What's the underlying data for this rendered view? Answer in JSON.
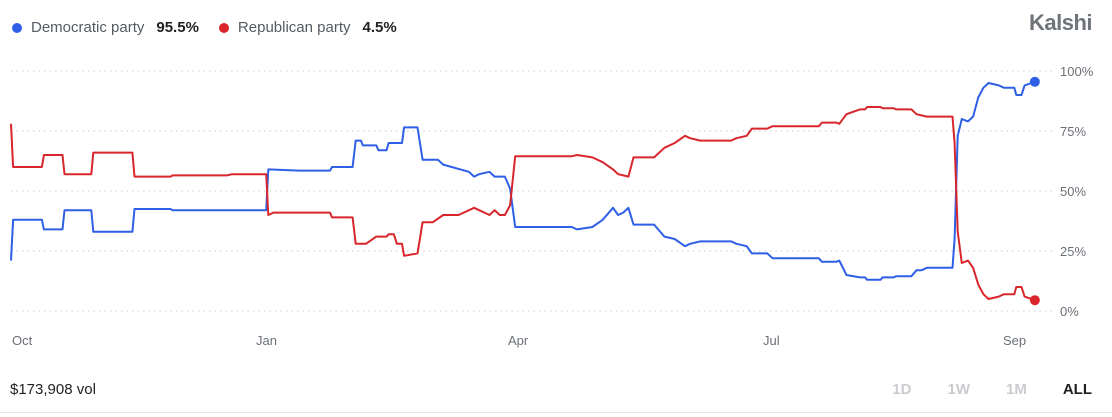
{
  "legend": {
    "dem": {
      "label": "Democratic party",
      "value": "95.5%",
      "color": "#2f5fe6"
    },
    "rep": {
      "label": "Republican party",
      "value": "4.5%",
      "color": "#d9262c"
    }
  },
  "brand": "Kalshi",
  "volume": "$173,908 vol",
  "ranges": [
    "1D",
    "1W",
    "1M",
    "ALL"
  ],
  "active_range": "ALL",
  "chart_data": {
    "type": "line",
    "x_tick_labels": [
      "Oct",
      "Jan",
      "Apr",
      "Jul",
      "Sep"
    ],
    "y_tick_labels": [
      "100%",
      "75%",
      "50%",
      "25%",
      "0%"
    ],
    "y_ticks": [
      100,
      75,
      50,
      25,
      0
    ],
    "ylim": [
      0,
      100
    ],
    "xlim": [
      0,
      100
    ],
    "grid": true,
    "legend_position": "top-left",
    "series": [
      {
        "name": "Democratic party",
        "color": "#2f5fe6",
        "end_marker": true,
        "points": [
          [
            0,
            21
          ],
          [
            0.2,
            38
          ],
          [
            3,
            38
          ],
          [
            3.2,
            34
          ],
          [
            5,
            34
          ],
          [
            5.2,
            42
          ],
          [
            7.8,
            42
          ],
          [
            8,
            33
          ],
          [
            11.8,
            33
          ],
          [
            12,
            42.5
          ],
          [
            15.5,
            42.5
          ],
          [
            15.7,
            42
          ],
          [
            21,
            42
          ],
          [
            21.5,
            42
          ],
          [
            24.8,
            42
          ],
          [
            25,
            59
          ],
          [
            28,
            58.5
          ],
          [
            31,
            58.5
          ],
          [
            31.2,
            60
          ],
          [
            33.2,
            60
          ],
          [
            33.5,
            71
          ],
          [
            34,
            71
          ],
          [
            34.2,
            69
          ],
          [
            35.5,
            69
          ],
          [
            35.7,
            67
          ],
          [
            36.5,
            67
          ],
          [
            36.7,
            70
          ],
          [
            38,
            70
          ],
          [
            38.2,
            76.5
          ],
          [
            39.5,
            76.5
          ],
          [
            40,
            63
          ],
          [
            41.5,
            63
          ],
          [
            42,
            61
          ],
          [
            44.5,
            58
          ],
          [
            45,
            56
          ],
          [
            45.5,
            57
          ],
          [
            46.5,
            58
          ],
          [
            47,
            56
          ],
          [
            48,
            56
          ],
          [
            48.5,
            51
          ],
          [
            49,
            35
          ],
          [
            54.5,
            35
          ],
          [
            55,
            34
          ],
          [
            56.5,
            35
          ],
          [
            57.5,
            38
          ],
          [
            58.5,
            43
          ],
          [
            59,
            40
          ],
          [
            59.5,
            41
          ],
          [
            60,
            43
          ],
          [
            60.5,
            36
          ],
          [
            62.5,
            36
          ],
          [
            63.5,
            31
          ],
          [
            64.5,
            30
          ],
          [
            65.5,
            27
          ],
          [
            66,
            28
          ],
          [
            67,
            29
          ],
          [
            70,
            29
          ],
          [
            70.5,
            28
          ],
          [
            71.5,
            27
          ],
          [
            72,
            24
          ],
          [
            73.5,
            24
          ],
          [
            74,
            22
          ],
          [
            78.5,
            22
          ],
          [
            78.8,
            20.5
          ],
          [
            80.2,
            20.5
          ],
          [
            80.5,
            21
          ],
          [
            81.2,
            15
          ],
          [
            82.5,
            14
          ],
          [
            83,
            14
          ],
          [
            83.2,
            13
          ],
          [
            84.5,
            13
          ],
          [
            84.7,
            14
          ],
          [
            85.8,
            14
          ],
          [
            86,
            14.5
          ],
          [
            87.5,
            14.5
          ],
          [
            88,
            17
          ],
          [
            88.5,
            17
          ],
          [
            89,
            18
          ],
          [
            91.5,
            18
          ],
          [
            91.7,
            30
          ],
          [
            92,
            73
          ],
          [
            92.4,
            80
          ],
          [
            93,
            79
          ],
          [
            93.5,
            81
          ],
          [
            94,
            89
          ],
          [
            94.5,
            93
          ],
          [
            95,
            95
          ],
          [
            96,
            94
          ],
          [
            96.5,
            93
          ],
          [
            97.5,
            93
          ],
          [
            97.7,
            90
          ],
          [
            98.2,
            90
          ],
          [
            98.5,
            94
          ],
          [
            99.5,
            95.5
          ]
        ]
      },
      {
        "name": "Republican party",
        "color": "#d9262c",
        "end_marker": true,
        "points": [
          [
            0,
            78
          ],
          [
            0.2,
            60
          ],
          [
            3,
            60
          ],
          [
            3.2,
            65
          ],
          [
            5,
            65
          ],
          [
            5.2,
            57
          ],
          [
            7.8,
            57
          ],
          [
            8,
            66
          ],
          [
            11.8,
            66
          ],
          [
            12,
            56
          ],
          [
            15.5,
            56
          ],
          [
            15.7,
            56.5
          ],
          [
            21,
            56.5
          ],
          [
            21.5,
            57
          ],
          [
            24.8,
            57
          ],
          [
            25,
            40
          ],
          [
            25.5,
            41
          ],
          [
            28,
            41
          ],
          [
            31,
            41
          ],
          [
            31.2,
            39
          ],
          [
            33.2,
            39
          ],
          [
            33.5,
            28
          ],
          [
            34.5,
            28
          ],
          [
            35.5,
            31
          ],
          [
            36.5,
            31
          ],
          [
            36.7,
            32
          ],
          [
            37.2,
            32
          ],
          [
            37.5,
            28
          ],
          [
            38,
            28
          ],
          [
            38.2,
            23
          ],
          [
            39.5,
            24
          ],
          [
            40,
            37
          ],
          [
            41,
            37
          ],
          [
            42,
            40
          ],
          [
            43.5,
            40
          ],
          [
            44,
            41
          ],
          [
            45,
            43
          ],
          [
            45.5,
            42
          ],
          [
            46.5,
            40
          ],
          [
            47,
            42
          ],
          [
            47.5,
            40
          ],
          [
            48,
            40
          ],
          [
            48.5,
            44
          ],
          [
            49,
            64.5
          ],
          [
            54.5,
            64.5
          ],
          [
            55,
            65
          ],
          [
            56.5,
            64
          ],
          [
            57.5,
            62
          ],
          [
            58.5,
            59
          ],
          [
            59,
            57
          ],
          [
            59.5,
            56.5
          ],
          [
            60,
            56
          ],
          [
            60.5,
            64
          ],
          [
            62.5,
            64
          ],
          [
            63.5,
            68
          ],
          [
            64.5,
            70
          ],
          [
            65.5,
            73
          ],
          [
            66,
            72
          ],
          [
            67,
            71
          ],
          [
            70,
            71
          ],
          [
            70.5,
            72
          ],
          [
            71.5,
            73
          ],
          [
            72,
            76
          ],
          [
            73.5,
            76
          ],
          [
            74,
            77
          ],
          [
            78.5,
            77
          ],
          [
            78.8,
            78.5
          ],
          [
            80.2,
            78.5
          ],
          [
            80.5,
            78
          ],
          [
            81.2,
            82
          ],
          [
            82.5,
            84
          ],
          [
            83,
            84
          ],
          [
            83.2,
            85
          ],
          [
            84.5,
            85
          ],
          [
            84.7,
            84.5
          ],
          [
            85.8,
            84.5
          ],
          [
            86,
            84
          ],
          [
            87.5,
            84
          ],
          [
            88,
            82
          ],
          [
            89,
            81
          ],
          [
            91.5,
            81
          ],
          [
            91.7,
            70
          ],
          [
            92,
            33
          ],
          [
            92.4,
            20
          ],
          [
            93,
            21
          ],
          [
            93.5,
            18
          ],
          [
            94,
            11
          ],
          [
            94.5,
            7
          ],
          [
            95,
            5
          ],
          [
            96,
            6
          ],
          [
            96.5,
            7
          ],
          [
            97.5,
            7
          ],
          [
            97.7,
            10
          ],
          [
            98.2,
            10
          ],
          [
            98.5,
            6
          ],
          [
            99.5,
            4.5
          ]
        ]
      }
    ]
  }
}
